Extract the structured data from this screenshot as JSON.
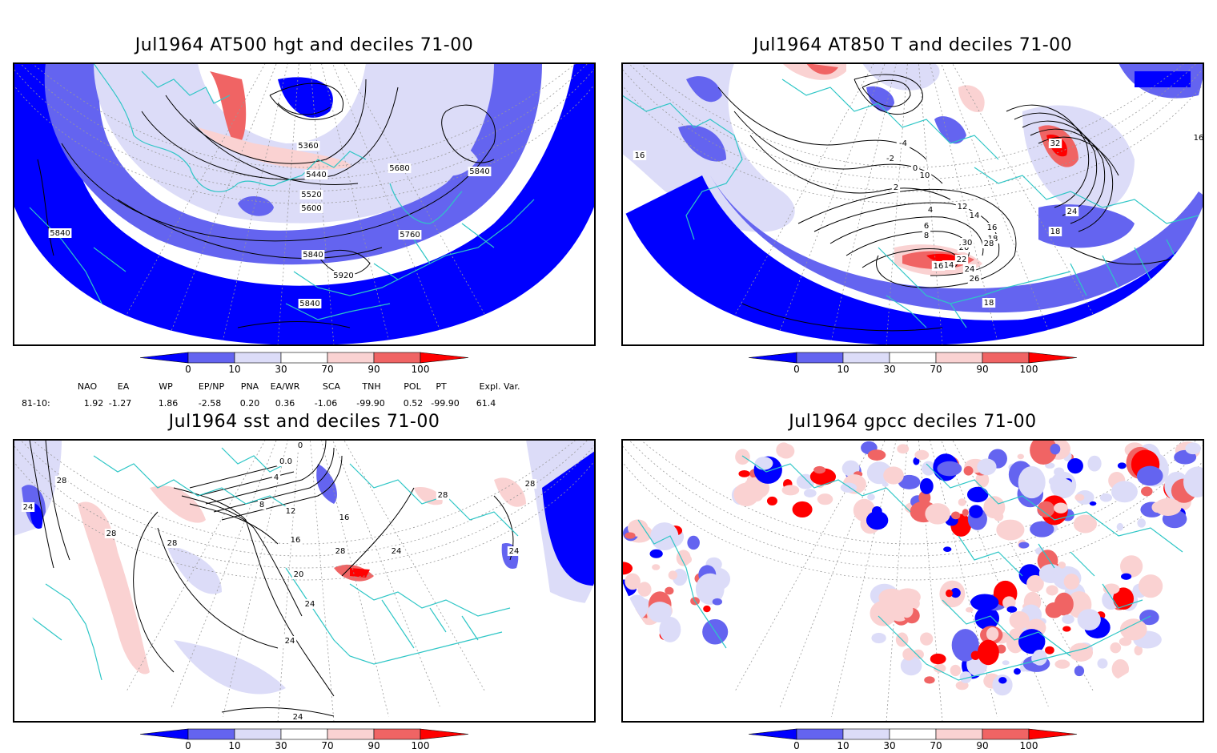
{
  "panels": [
    {
      "title": "Jul1964 AT500 hgt and deciles 71-00",
      "contour_labels": [
        "5360",
        "5440",
        "5520",
        "5600",
        "5680",
        "5840",
        "5760",
        "5840",
        "5920",
        "5840",
        "5840"
      ]
    },
    {
      "title": "Jul1964 AT850 T and deciles 71-00",
      "contour_labels": [
        "16",
        "-4",
        "-2",
        "0",
        "2",
        "4",
        "6",
        "8",
        "10",
        "12",
        "14",
        "16",
        "18",
        "20",
        "22",
        "24",
        "26",
        "28",
        "30",
        "32",
        "14",
        "16",
        "18",
        "18",
        "14",
        "14",
        "16",
        "18",
        "24",
        "16"
      ]
    },
    {
      "title": "Jul1964 sst and deciles 71-00",
      "contour_labels": [
        "28",
        "24",
        "28",
        "28",
        "0",
        "0.0",
        "4",
        "8",
        "12",
        "16",
        "20",
        "24",
        "24",
        "28",
        "24",
        "28",
        "24",
        "28",
        "16",
        "24"
      ]
    },
    {
      "title": "Jul1964 gpcc deciles 71-00",
      "contour_labels": []
    }
  ],
  "colorbar": {
    "colors": {
      "dark_blue": "#0000ff",
      "mid_blue": "#6464f0",
      "light_blue": "#dcdcf8",
      "white": "#ffffff",
      "light_red": "#fad2d2",
      "mid_red": "#f06464",
      "dark_red": "#ff0000",
      "coast": "#2ec6c6"
    },
    "labels": [
      "0",
      "10",
      "30",
      "70",
      "90",
      "100"
    ]
  },
  "indices": {
    "headers": [
      "NAO",
      "EA",
      "WP",
      "EP/NP",
      "PNA",
      "EA/WR",
      "SCA",
      "TNH",
      "POL",
      "PT",
      "Expl. Var."
    ],
    "row_label": "81-10:",
    "values": [
      "1.92",
      "-1.27",
      "1.86",
      "-2.58",
      "0.20",
      "0.36",
      "-1.06",
      "-99.90",
      "0.52",
      "-99.90",
      "61.4"
    ]
  }
}
